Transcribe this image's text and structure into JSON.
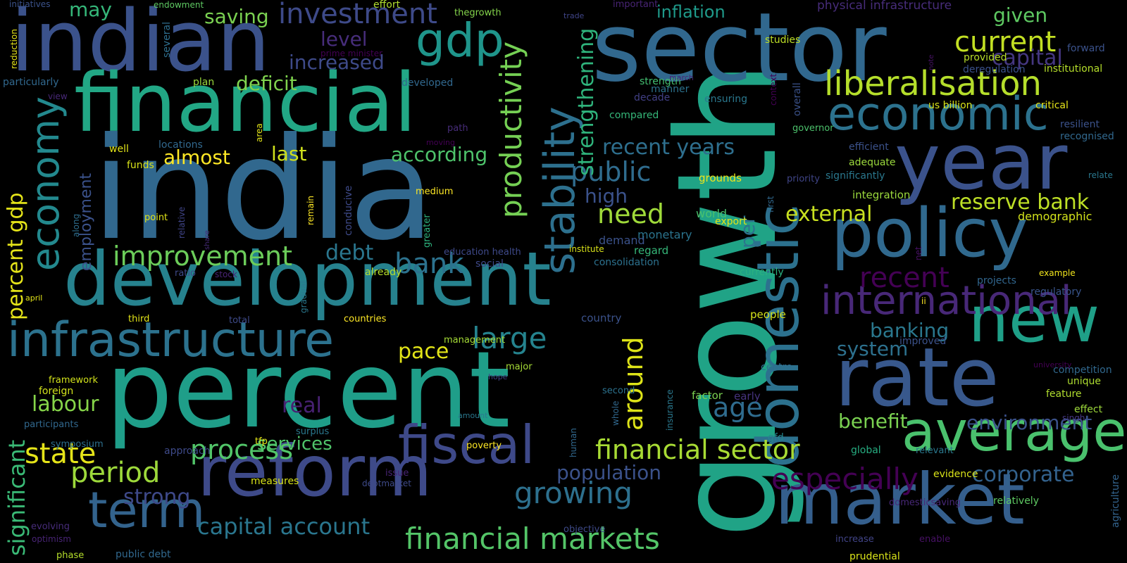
{
  "words": [
    {
      "text": "india",
      "color": "#31688e"
    },
    {
      "text": "growth",
      "color": "#20a386"
    },
    {
      "text": "sector",
      "color": "#31688e"
    },
    {
      "text": "percent",
      "color": "#1f9e89"
    },
    {
      "text": "indian",
      "color": "#3b528b"
    },
    {
      "text": "financial",
      "color": "#22a785"
    },
    {
      "text": "development",
      "color": "#26828e"
    },
    {
      "text": "reform",
      "color": "#3e4a89"
    },
    {
      "text": "year",
      "color": "#3b528b"
    },
    {
      "text": "market",
      "color": "#355f8d"
    },
    {
      "text": "domestic",
      "color": "#2c718e"
    },
    {
      "text": "policy",
      "color": "#30698e"
    },
    {
      "text": "rate",
      "color": "#38588c"
    },
    {
      "text": "infrastructure",
      "color": "#2c728e"
    },
    {
      "text": "fiscal",
      "color": "#3e4989"
    },
    {
      "text": "term",
      "color": "#33638d"
    },
    {
      "text": "new",
      "color": "#1fa088"
    },
    {
      "text": "average",
      "color": "#4ac16d"
    },
    {
      "text": "economic",
      "color": "#2c728e"
    },
    {
      "text": "liberalisation",
      "color": "#b5de2b"
    },
    {
      "text": "international",
      "color": "#482878"
    },
    {
      "text": "gdp",
      "color": "#1f958b"
    },
    {
      "text": "stability",
      "color": "#2d708e"
    },
    {
      "text": "economy",
      "color": "#23898e"
    },
    {
      "text": "productivity",
      "color": "#75d054"
    },
    {
      "text": "current",
      "color": "#c2df23"
    },
    {
      "text": "capital",
      "color": "#453781"
    },
    {
      "text": "investment",
      "color": "#3e4a89"
    },
    {
      "text": "improvement",
      "color": "#6ccd5a"
    },
    {
      "text": "period",
      "color": "#9dd93b"
    },
    {
      "text": "state",
      "color": "#e5e419"
    },
    {
      "text": "significant",
      "color": "#3aba76"
    },
    {
      "text": "percent gdp",
      "color": "#e5e419"
    },
    {
      "text": "process",
      "color": "#52c569"
    },
    {
      "text": "growing",
      "color": "#2d708e"
    },
    {
      "text": "financial sector",
      "color": "#a8db34"
    },
    {
      "text": "financial markets",
      "color": "#54c568"
    },
    {
      "text": "capital account",
      "color": "#2a768e"
    },
    {
      "text": "large",
      "color": "#25838e"
    },
    {
      "text": "bank",
      "color": "#2c728e"
    },
    {
      "text": "public",
      "color": "#2f6c8e"
    },
    {
      "text": "need",
      "color": "#9fda3a"
    },
    {
      "text": "recent years",
      "color": "#2e6f8e"
    },
    {
      "text": "around",
      "color": "#dde318"
    },
    {
      "text": "age",
      "color": "#2f6c8e"
    },
    {
      "text": "especially",
      "color": "#440154"
    },
    {
      "text": "recent",
      "color": "#440154"
    },
    {
      "text": "external",
      "color": "#c8e020"
    },
    {
      "text": "reserve bank",
      "color": "#bddf26"
    },
    {
      "text": "banking",
      "color": "#2a788e"
    },
    {
      "text": "system",
      "color": "#2d718e"
    },
    {
      "text": "benefit",
      "color": "#7ad151"
    },
    {
      "text": "environment",
      "color": "#3b528b"
    },
    {
      "text": "corporate",
      "color": "#33628d"
    },
    {
      "text": "population",
      "color": "#3b528b"
    },
    {
      "text": "strengthening",
      "color": "#2fb47c"
    },
    {
      "text": "services",
      "color": "#4fc46a"
    },
    {
      "text": "strong",
      "color": "#3e4989"
    },
    {
      "text": "pace",
      "color": "#e2e418"
    },
    {
      "text": "debt",
      "color": "#2a768e"
    },
    {
      "text": "real",
      "color": "#482173"
    },
    {
      "text": "labour",
      "color": "#86d549"
    },
    {
      "text": "last",
      "color": "#d0e11c"
    },
    {
      "text": "almost",
      "color": "#fde725"
    },
    {
      "text": "according",
      "color": "#4ec36b"
    },
    {
      "text": "deficit",
      "color": "#7fd34e"
    },
    {
      "text": "increased",
      "color": "#3e4a89"
    },
    {
      "text": "level",
      "color": "#472d7b"
    },
    {
      "text": "saving",
      "color": "#7ad151"
    },
    {
      "text": "may",
      "color": "#35b779"
    },
    {
      "text": "inflation",
      "color": "#1f9a8a"
    },
    {
      "text": "given",
      "color": "#5ec962"
    },
    {
      "text": "employment",
      "color": "#3b528b"
    },
    {
      "text": "high",
      "color": "#3b528b"
    },
    {
      "text": "per",
      "color": "#2c738e"
    },
    {
      "text": "physical infrastructure",
      "color": "#472c7a"
    },
    {
      "text": "institutional",
      "color": "#b5de2b"
    },
    {
      "text": "deregulation",
      "color": "#3b518b"
    },
    {
      "text": "provided",
      "color": "#b8de29"
    },
    {
      "text": "forward",
      "color": "#3b528b"
    },
    {
      "text": "studies",
      "color": "#bddf26"
    },
    {
      "text": "critical",
      "color": "#e5e419"
    },
    {
      "text": "us billion",
      "color": "#d8e219"
    },
    {
      "text": "resilient",
      "color": "#3b528b"
    },
    {
      "text": "recognised",
      "color": "#31688e"
    },
    {
      "text": "relate",
      "color": "#2a788e"
    },
    {
      "text": "demographic",
      "color": "#d2e21b"
    },
    {
      "text": "regulatory",
      "color": "#39558c"
    },
    {
      "text": "projects",
      "color": "#31668e"
    },
    {
      "text": "example",
      "color": "#f1e51d"
    },
    {
      "text": "competition",
      "color": "#31688e"
    },
    {
      "text": "unique",
      "color": "#addc30"
    },
    {
      "text": "feature",
      "color": "#b0dd2f"
    },
    {
      "text": "effect",
      "color": "#9dd93b"
    },
    {
      "text": "singh",
      "color": "#453781"
    },
    {
      "text": "agriculture",
      "color": "#33638d"
    },
    {
      "text": "university",
      "color": "#440154"
    },
    {
      "text": "improved",
      "color": "#3b528b"
    },
    {
      "text": "evidence",
      "color": "#dae319"
    },
    {
      "text": "relatively",
      "color": "#5ec962"
    },
    {
      "text": "domesticsaving",
      "color": "#482878"
    },
    {
      "text": "prudential",
      "color": "#d8e219"
    },
    {
      "text": "enable",
      "color": "#471164"
    },
    {
      "text": "increase",
      "color": "#414487"
    },
    {
      "text": "relevant",
      "color": "#2a788e"
    },
    {
      "text": "global",
      "color": "#26ad81"
    },
    {
      "text": "gfd",
      "color": "#25858e"
    },
    {
      "text": "centre",
      "color": "#2e6e8e"
    },
    {
      "text": "net",
      "color": "#471164"
    },
    {
      "text": "ii",
      "color": "#fde725"
    },
    {
      "text": "currently",
      "color": "#2ab07f"
    },
    {
      "text": "people",
      "color": "#d5e21a"
    },
    {
      "text": "early",
      "color": "#46337e"
    },
    {
      "text": "factor",
      "color": "#7ad151"
    },
    {
      "text": "country",
      "color": "#3b528b"
    },
    {
      "text": "demand",
      "color": "#3b528b"
    },
    {
      "text": "monetary",
      "color": "#2b748e"
    },
    {
      "text": "regard",
      "color": "#35b779"
    },
    {
      "text": "consolidation",
      "color": "#2c718e"
    },
    {
      "text": "institute",
      "color": "#d8e219"
    },
    {
      "text": "export",
      "color": "#e2e418"
    },
    {
      "text": "world",
      "color": "#4ac16d"
    },
    {
      "text": "first",
      "color": "#31688e"
    },
    {
      "text": "priority",
      "color": "#404588"
    },
    {
      "text": "grounds",
      "color": "#ece51b"
    },
    {
      "text": "integration",
      "color": "#9bd93c"
    },
    {
      "text": "significantly",
      "color": "#2a788e"
    },
    {
      "text": "adequate",
      "color": "#9bd93c"
    },
    {
      "text": "efficient",
      "color": "#3b528b"
    },
    {
      "text": "governor",
      "color": "#4cc26c"
    },
    {
      "text": "overall",
      "color": "#3b528b"
    },
    {
      "text": "context",
      "color": "#440154"
    },
    {
      "text": "ensuring",
      "color": "#2a788e"
    },
    {
      "text": "strength",
      "color": "#43bf71"
    },
    {
      "text": "manner",
      "color": "#2c728e"
    },
    {
      "text": "march",
      "color": "#482475"
    },
    {
      "text": "decade",
      "color": "#424086"
    },
    {
      "text": "compared",
      "color": "#35b779"
    },
    {
      "text": "important",
      "color": "#482475"
    },
    {
      "text": "trade",
      "color": "#404588"
    },
    {
      "text": "note",
      "color": "#471365"
    },
    {
      "text": "effort",
      "color": "#b0dd2f"
    },
    {
      "text": "thegrowth",
      "color": "#84d44b"
    },
    {
      "text": "endowment",
      "color": "#5ec962"
    },
    {
      "text": "initiatives",
      "color": "#3b528b"
    },
    {
      "text": "reduction",
      "color": "#e5e419"
    },
    {
      "text": "particularly",
      "color": "#31688e"
    },
    {
      "text": "several",
      "color": "#2e6e8e"
    },
    {
      "text": "prime minister",
      "color": "#440154"
    },
    {
      "text": "view",
      "color": "#482878"
    },
    {
      "text": "plan",
      "color": "#9bd93c"
    },
    {
      "text": "developed",
      "color": "#31688e"
    },
    {
      "text": "path",
      "color": "#472c7a"
    },
    {
      "text": "moving",
      "color": "#440154"
    },
    {
      "text": "area",
      "color": "#e2e418"
    },
    {
      "text": "well",
      "color": "#e2e418"
    },
    {
      "text": "locations",
      "color": "#31688e"
    },
    {
      "text": "funds",
      "color": "#d8e219"
    },
    {
      "text": "relative",
      "color": "#404588"
    },
    {
      "text": "point",
      "color": "#e2e418"
    },
    {
      "text": "remain",
      "color": "#fde725"
    },
    {
      "text": "medium",
      "color": "#fde725"
    },
    {
      "text": "conducive",
      "color": "#3e4a89"
    },
    {
      "text": "greater",
      "color": "#2db27d"
    },
    {
      "text": "education health",
      "color": "#3e4989"
    },
    {
      "text": "social",
      "color": "#3e4989"
    },
    {
      "text": "already",
      "color": "#b5de2b"
    },
    {
      "text": "along",
      "color": "#2e6e8e"
    },
    {
      "text": "share",
      "color": "#472c7a"
    },
    {
      "text": "ratio",
      "color": "#3e4a89"
    },
    {
      "text": "stock",
      "color": "#482475"
    },
    {
      "text": "april",
      "color": "#e2e418"
    },
    {
      "text": "gradual",
      "color": "#2a788e"
    },
    {
      "text": "third",
      "color": "#e2e418"
    },
    {
      "text": "total",
      "color": "#3e4a89"
    },
    {
      "text": "countries",
      "color": "#fde725"
    },
    {
      "text": "management",
      "color": "#a5db36"
    },
    {
      "text": "framework",
      "color": "#d2e21b"
    },
    {
      "text": "foreign",
      "color": "#d2e21b"
    },
    {
      "text": "major",
      "color": "#a5db36"
    },
    {
      "text": "hope",
      "color": "#414487"
    },
    {
      "text": "participants",
      "color": "#31688e"
    },
    {
      "text": "second",
      "color": "#2c728e"
    },
    {
      "text": "whole",
      "color": "#31688e"
    },
    {
      "text": "amount",
      "color": "#2a788e"
    },
    {
      "text": "symposium",
      "color": "#2d708e"
    },
    {
      "text": "tfp",
      "color": "#e2e418"
    },
    {
      "text": "surplus",
      "color": "#2a788e"
    },
    {
      "text": "human",
      "color": "#31688e"
    },
    {
      "text": "insurance",
      "color": "#2a788e"
    },
    {
      "text": "approach",
      "color": "#3e4a89"
    },
    {
      "text": "poverty",
      "color": "#fde725"
    },
    {
      "text": "measures",
      "color": "#d8e219"
    },
    {
      "text": "issue",
      "color": "#482475"
    },
    {
      "text": "debtmarket",
      "color": "#3e4a89"
    },
    {
      "text": "evolving",
      "color": "#472c7a"
    },
    {
      "text": "optimism",
      "color": "#482475"
    },
    {
      "text": "objective",
      "color": "#3e4a89"
    },
    {
      "text": "phase",
      "color": "#b5de2b"
    },
    {
      "text": "public debt",
      "color": "#31688e"
    }
  ]
}
